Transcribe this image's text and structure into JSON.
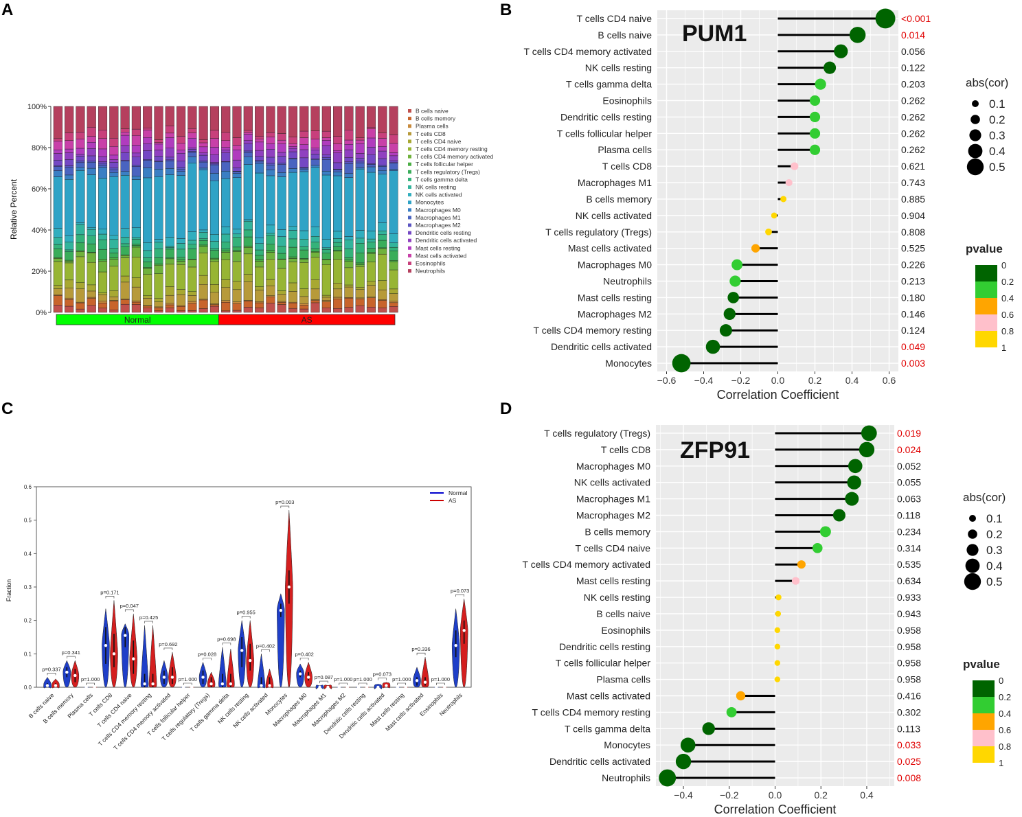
{
  "panel_letters": [
    "A",
    "B",
    "C",
    "D"
  ],
  "chart_data": [
    {
      "panel": "A",
      "type": "bar",
      "stacked": true,
      "ylabel": "Relative Percent",
      "yticks": [
        "0%",
        "20%",
        "40%",
        "60%",
        "80%",
        "100%"
      ],
      "groups": [
        {
          "label": "Normal",
          "count": 15,
          "color": "#00ff00"
        },
        {
          "label": "AS",
          "count": 16,
          "color": "#ff0000"
        }
      ],
      "legend": [
        {
          "name": "B cells naive",
          "color": "#c0504d"
        },
        {
          "name": "B cells memory",
          "color": "#c8642c"
        },
        {
          "name": "Plasma cells",
          "color": "#c88a3c"
        },
        {
          "name": "T cells CD8",
          "color": "#b79a3a"
        },
        {
          "name": "T cells CD4 naive",
          "color": "#a8a832"
        },
        {
          "name": "T cells CD4 memory resting",
          "color": "#97b534"
        },
        {
          "name": "T cells CD4 memory activated",
          "color": "#70b23c"
        },
        {
          "name": "T cells follicular helper",
          "color": "#4aae44"
        },
        {
          "name": "T cells regulatory (Tregs)",
          "color": "#3aad5a"
        },
        {
          "name": "T cells gamma delta",
          "color": "#34b27a"
        },
        {
          "name": "NK cells resting",
          "color": "#33b49c"
        },
        {
          "name": "NK cells activated",
          "color": "#31aebe"
        },
        {
          "name": "Monocytes",
          "color": "#2fa3c6"
        },
        {
          "name": "Macrophages M0",
          "color": "#3a7fc4"
        },
        {
          "name": "Macrophages M1",
          "color": "#4a64c0"
        },
        {
          "name": "Macrophages M2",
          "color": "#5b54c2"
        },
        {
          "name": "Dendritic cells resting",
          "color": "#7448c4"
        },
        {
          "name": "Dendritic cells activated",
          "color": "#9040c0"
        },
        {
          "name": "Mast cells resting",
          "color": "#b03cbe"
        },
        {
          "name": "Mast cells activated",
          "color": "#c840a8"
        },
        {
          "name": "Eosinophils",
          "color": "#c8407c"
        },
        {
          "name": "Neutrophils",
          "color": "#b5405e"
        }
      ]
    },
    {
      "panel": "B",
      "type": "scatter",
      "title": "PUM1",
      "xlabel": "Correlation Coefficient",
      "xlim": [
        -0.65,
        0.65
      ],
      "xticks": [
        -0.6,
        -0.4,
        -0.2,
        0.0,
        0.2,
        0.4,
        0.6
      ],
      "xtick_labels": [
        "−0.6",
        "−0.4",
        "−0.2",
        "0.0",
        "0.2",
        "0.4",
        "0.6"
      ],
      "size_legend": {
        "title": "abs(cor)",
        "values": [
          "0.1",
          "0.2",
          "0.3",
          "0.4",
          "0.5"
        ]
      },
      "color_legend": {
        "title": "pvalue",
        "labels": [
          "0",
          "0.2",
          "0.4",
          "0.6",
          "0.8",
          "1"
        ],
        "colors": [
          "#006400",
          "#32cd32",
          "#ffa500",
          "#ffc0cb",
          "#ffd700"
        ]
      },
      "rows": [
        {
          "cell": "T cells CD4 naive",
          "cor": 0.58,
          "p": "<0.001",
          "color": "#006400",
          "sig": true
        },
        {
          "cell": "B cells naive",
          "cor": 0.43,
          "p": "0.014",
          "color": "#006400",
          "sig": true
        },
        {
          "cell": "T cells CD4 memory activated",
          "cor": 0.34,
          "p": "0.056",
          "color": "#006400",
          "sig": false
        },
        {
          "cell": "NK cells resting",
          "cor": 0.28,
          "p": "0.122",
          "color": "#006400",
          "sig": false
        },
        {
          "cell": "T cells gamma delta",
          "cor": 0.23,
          "p": "0.203",
          "color": "#32cd32",
          "sig": false
        },
        {
          "cell": "Eosinophils",
          "cor": 0.2,
          "p": "0.262",
          "color": "#32cd32",
          "sig": false
        },
        {
          "cell": "Dendritic cells resting",
          "cor": 0.2,
          "p": "0.262",
          "color": "#32cd32",
          "sig": false
        },
        {
          "cell": "T cells follicular helper",
          "cor": 0.2,
          "p": "0.262",
          "color": "#32cd32",
          "sig": false
        },
        {
          "cell": "Plasma cells",
          "cor": 0.2,
          "p": "0.262",
          "color": "#32cd32",
          "sig": false
        },
        {
          "cell": "T cells CD8",
          "cor": 0.09,
          "p": "0.621",
          "color": "#ffc0cb",
          "sig": false
        },
        {
          "cell": "Macrophages M1",
          "cor": 0.06,
          "p": "0.743",
          "color": "#ffc0cb",
          "sig": false
        },
        {
          "cell": "B cells memory",
          "cor": 0.03,
          "p": "0.885",
          "color": "#ffd700",
          "sig": false
        },
        {
          "cell": "NK cells activated",
          "cor": -0.02,
          "p": "0.904",
          "color": "#ffd700",
          "sig": false
        },
        {
          "cell": "T cells regulatory (Tregs)",
          "cor": -0.05,
          "p": "0.808",
          "color": "#ffd700",
          "sig": false
        },
        {
          "cell": "Mast cells activated",
          "cor": -0.12,
          "p": "0.525",
          "color": "#ffa500",
          "sig": false
        },
        {
          "cell": "Macrophages M0",
          "cor": -0.22,
          "p": "0.226",
          "color": "#32cd32",
          "sig": false
        },
        {
          "cell": "Neutrophils",
          "cor": -0.23,
          "p": "0.213",
          "color": "#32cd32",
          "sig": false
        },
        {
          "cell": "Mast cells resting",
          "cor": -0.24,
          "p": "0.180",
          "color": "#006400",
          "sig": false
        },
        {
          "cell": "Macrophages M2",
          "cor": -0.26,
          "p": "0.146",
          "color": "#006400",
          "sig": false
        },
        {
          "cell": "T cells CD4 memory resting",
          "cor": -0.28,
          "p": "0.124",
          "color": "#006400",
          "sig": false
        },
        {
          "cell": "Dendritic cells activated",
          "cor": -0.35,
          "p": "0.049",
          "color": "#006400",
          "sig": true
        },
        {
          "cell": "Monocytes",
          "cor": -0.52,
          "p": "0.003",
          "color": "#006400",
          "sig": true
        }
      ]
    },
    {
      "panel": "C",
      "type": "violin",
      "ylabel": "Fraction",
      "ylim": [
        0,
        0.6
      ],
      "yticks": [
        "0.0",
        "0.1",
        "0.2",
        "0.3",
        "0.4",
        "0.5",
        "0.6"
      ],
      "legend": [
        {
          "name": "Normal",
          "color": "#0000cc"
        },
        {
          "name": "AS",
          "color": "#cc0000"
        }
      ],
      "categories": [
        {
          "name": "B cells naive",
          "p": "p=0.337",
          "normal": {
            "median": 0.005,
            "q1": 0.0,
            "q3": 0.012,
            "max": 0.03
          },
          "as": {
            "median": 0.005,
            "q1": 0.0,
            "q3": 0.012,
            "max": 0.025
          }
        },
        {
          "name": "B cells memory",
          "p": "p=0.341",
          "normal": {
            "median": 0.045,
            "q1": 0.03,
            "q3": 0.06,
            "max": 0.08
          },
          "as": {
            "median": 0.035,
            "q1": 0.015,
            "q3": 0.055,
            "max": 0.08
          }
        },
        {
          "name": "Plasma cells",
          "p": "p=1.000",
          "normal": {
            "median": 0.0,
            "q1": 0.0,
            "q3": 0.0,
            "max": 0.0
          },
          "as": {
            "median": 0.0,
            "q1": 0.0,
            "q3": 0.0,
            "max": 0.0
          }
        },
        {
          "name": "T cells CD8",
          "p": "p=0.171",
          "normal": {
            "median": 0.125,
            "q1": 0.07,
            "q3": 0.18,
            "max": 0.235
          },
          "as": {
            "median": 0.1,
            "q1": 0.06,
            "q3": 0.16,
            "max": 0.26
          }
        },
        {
          "name": "T cells CD4 naive",
          "p": "p=0.047",
          "normal": {
            "median": 0.155,
            "q1": 0.12,
            "q3": 0.18,
            "max": 0.19
          },
          "as": {
            "median": 0.085,
            "q1": 0.04,
            "q3": 0.14,
            "max": 0.22
          }
        },
        {
          "name": "T cells CD4 memory resting",
          "p": "p=0.425",
          "normal": {
            "median": 0.01,
            "q1": 0.0,
            "q3": 0.04,
            "max": 0.185
          },
          "as": {
            "median": 0.01,
            "q1": 0.0,
            "q3": 0.04,
            "max": 0.185
          }
        },
        {
          "name": "T cells CD4 memory activated",
          "p": "p=0.692",
          "normal": {
            "median": 0.03,
            "q1": 0.01,
            "q3": 0.05,
            "max": 0.08
          },
          "as": {
            "median": 0.03,
            "q1": 0.01,
            "q3": 0.06,
            "max": 0.105
          }
        },
        {
          "name": "T cells follicular helper",
          "p": "p=1.000",
          "normal": {
            "median": 0.0,
            "q1": 0.0,
            "q3": 0.0,
            "max": 0.0
          },
          "as": {
            "median": 0.0,
            "q1": 0.0,
            "q3": 0.0,
            "max": 0.0
          }
        },
        {
          "name": "T cells regulatory (Tregs)",
          "p": "p=0.028",
          "normal": {
            "median": 0.03,
            "q1": 0.01,
            "q3": 0.05,
            "max": 0.075
          },
          "as": {
            "median": 0.01,
            "q1": 0.0,
            "q3": 0.03,
            "max": 0.045
          }
        },
        {
          "name": "T cells gamma delta",
          "p": "p=0.698",
          "normal": {
            "median": 0.01,
            "q1": 0.0,
            "q3": 0.04,
            "max": 0.12
          },
          "as": {
            "median": 0.01,
            "q1": 0.0,
            "q3": 0.04,
            "max": 0.115
          }
        },
        {
          "name": "NK cells resting",
          "p": "p=0.955",
          "normal": {
            "median": 0.11,
            "q1": 0.06,
            "q3": 0.15,
            "max": 0.2
          },
          "as": {
            "median": 0.08,
            "q1": 0.05,
            "q3": 0.13,
            "max": 0.2
          }
        },
        {
          "name": "NK cells activated",
          "p": "p=0.402",
          "normal": {
            "median": 0.005,
            "q1": 0.0,
            "q3": 0.03,
            "max": 0.1
          },
          "as": {
            "median": 0.005,
            "q1": 0.0,
            "q3": 0.03,
            "max": 0.055
          }
        },
        {
          "name": "Monocytes",
          "p": "p=0.003",
          "normal": {
            "median": 0.23,
            "q1": 0.21,
            "q3": 0.25,
            "max": 0.28
          },
          "as": {
            "median": 0.3,
            "q1": 0.25,
            "q3": 0.35,
            "max": 0.53
          }
        },
        {
          "name": "Macrophages M0",
          "p": "p=0.402",
          "normal": {
            "median": 0.04,
            "q1": 0.03,
            "q3": 0.05,
            "max": 0.07
          },
          "as": {
            "median": 0.03,
            "q1": 0.02,
            "q3": 0.045,
            "max": 0.075
          }
        },
        {
          "name": "Macrophages M1",
          "p": "p=0.087",
          "normal": {
            "median": 0.0,
            "q1": 0.0,
            "q3": 0.003,
            "max": 0.005
          },
          "as": {
            "median": 0.0,
            "q1": 0.0,
            "q3": 0.003,
            "max": 0.006
          }
        },
        {
          "name": "Macrophages M2",
          "p": "p=1.000",
          "normal": {
            "median": 0.0,
            "q1": 0.0,
            "q3": 0.0,
            "max": 0.0
          },
          "as": {
            "median": 0.0,
            "q1": 0.0,
            "q3": 0.0,
            "max": 0.0
          }
        },
        {
          "name": "Dendritic cells resting",
          "p": "p=1.000",
          "normal": {
            "median": 0.0,
            "q1": 0.0,
            "q3": 0.0,
            "max": 0.0
          },
          "as": {
            "median": 0.0,
            "q1": 0.0,
            "q3": 0.0,
            "max": 0.0
          }
        },
        {
          "name": "Dendritic cells activated",
          "p": "p=0.073",
          "normal": {
            "median": 0.0,
            "q1": 0.0,
            "q3": 0.005,
            "max": 0.01
          },
          "as": {
            "median": 0.005,
            "q1": 0.0,
            "q3": 0.008,
            "max": 0.015
          }
        },
        {
          "name": "Mast cells resting",
          "p": "p=1.000",
          "normal": {
            "median": 0.0,
            "q1": 0.0,
            "q3": 0.0,
            "max": 0.0
          },
          "as": {
            "median": 0.0,
            "q1": 0.0,
            "q3": 0.0,
            "max": 0.0
          }
        },
        {
          "name": "Mast cells activated",
          "p": "p=0.336",
          "normal": {
            "median": 0.02,
            "q1": 0.005,
            "q3": 0.03,
            "max": 0.06
          },
          "as": {
            "median": 0.015,
            "q1": 0.005,
            "q3": 0.03,
            "max": 0.09
          }
        },
        {
          "name": "Eosinophils",
          "p": "p=1.000",
          "normal": {
            "median": 0.0,
            "q1": 0.0,
            "q3": 0.0,
            "max": 0.0
          },
          "as": {
            "median": 0.0,
            "q1": 0.0,
            "q3": 0.0,
            "max": 0.0
          }
        },
        {
          "name": "Neutrophils",
          "p": "p=0.073",
          "normal": {
            "median": 0.125,
            "q1": 0.09,
            "q3": 0.17,
            "max": 0.235
          },
          "as": {
            "median": 0.17,
            "q1": 0.13,
            "q3": 0.2,
            "max": 0.265
          }
        }
      ]
    },
    {
      "panel": "D",
      "type": "scatter",
      "title": "ZFP91",
      "xlabel": "Correlation Coefficient",
      "xlim": [
        -0.52,
        0.52
      ],
      "xticks": [
        -0.4,
        -0.2,
        0.0,
        0.2,
        0.4
      ],
      "xtick_labels": [
        "−0.4",
        "−0.2",
        "0.0",
        "0.2",
        "0.4"
      ],
      "size_legend": {
        "title": "abs(cor)",
        "values": [
          "0.1",
          "0.2",
          "0.3",
          "0.4",
          "0.5"
        ]
      },
      "color_legend": {
        "title": "pvalue",
        "labels": [
          "0",
          "0.2",
          "0.4",
          "0.6",
          "0.8",
          "1"
        ],
        "colors": [
          "#006400",
          "#32cd32",
          "#ffa500",
          "#ffc0cb",
          "#ffd700"
        ]
      },
      "rows": [
        {
          "cell": "T cells regulatory (Tregs)",
          "cor": 0.41,
          "p": "0.019",
          "color": "#006400",
          "sig": true
        },
        {
          "cell": "T cells CD8",
          "cor": 0.4,
          "p": "0.024",
          "color": "#006400",
          "sig": true
        },
        {
          "cell": "Macrophages M0",
          "cor": 0.35,
          "p": "0.052",
          "color": "#006400",
          "sig": false
        },
        {
          "cell": "NK cells activated",
          "cor": 0.345,
          "p": "0.055",
          "color": "#006400",
          "sig": false
        },
        {
          "cell": "Macrophages M1",
          "cor": 0.335,
          "p": "0.063",
          "color": "#006400",
          "sig": false
        },
        {
          "cell": "Macrophages M2",
          "cor": 0.28,
          "p": "0.118",
          "color": "#006400",
          "sig": false
        },
        {
          "cell": "B cells memory",
          "cor": 0.22,
          "p": "0.234",
          "color": "#32cd32",
          "sig": false
        },
        {
          "cell": "T cells CD4 naive",
          "cor": 0.185,
          "p": "0.314",
          "color": "#32cd32",
          "sig": false
        },
        {
          "cell": "T cells CD4 memory activated",
          "cor": 0.115,
          "p": "0.535",
          "color": "#ffa500",
          "sig": false
        },
        {
          "cell": "Mast cells resting",
          "cor": 0.09,
          "p": "0.634",
          "color": "#ffc0cb",
          "sig": false
        },
        {
          "cell": "NK cells resting",
          "cor": 0.015,
          "p": "0.933",
          "color": "#ffd700",
          "sig": false
        },
        {
          "cell": "B cells naive",
          "cor": 0.013,
          "p": "0.943",
          "color": "#ffd700",
          "sig": false
        },
        {
          "cell": "Eosinophils",
          "cor": 0.01,
          "p": "0.958",
          "color": "#ffd700",
          "sig": false
        },
        {
          "cell": "Dendritic cells resting",
          "cor": 0.01,
          "p": "0.958",
          "color": "#ffd700",
          "sig": false
        },
        {
          "cell": "T cells follicular helper",
          "cor": 0.01,
          "p": "0.958",
          "color": "#ffd700",
          "sig": false
        },
        {
          "cell": "Plasma cells",
          "cor": 0.01,
          "p": "0.958",
          "color": "#ffd700",
          "sig": false
        },
        {
          "cell": "Mast cells activated",
          "cor": -0.15,
          "p": "0.416",
          "color": "#ffa500",
          "sig": false
        },
        {
          "cell": "T cells CD4 memory resting",
          "cor": -0.19,
          "p": "0.302",
          "color": "#32cd32",
          "sig": false
        },
        {
          "cell": "T cells gamma delta",
          "cor": -0.29,
          "p": "0.113",
          "color": "#006400",
          "sig": false
        },
        {
          "cell": "Monocytes",
          "cor": -0.38,
          "p": "0.033",
          "color": "#006400",
          "sig": true
        },
        {
          "cell": "Dendritic cells activated",
          "cor": -0.4,
          "p": "0.025",
          "color": "#006400",
          "sig": true
        },
        {
          "cell": "Neutrophils",
          "cor": -0.47,
          "p": "0.008",
          "color": "#006400",
          "sig": true
        }
      ]
    }
  ]
}
